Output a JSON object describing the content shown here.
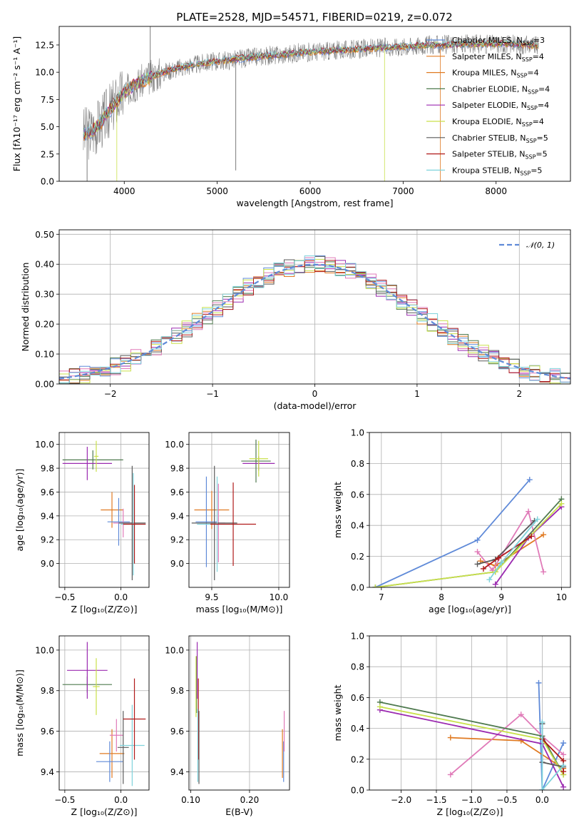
{
  "figure": {
    "title": "PLATE=2528, MJD=54571, FIBERID=0219, z=0.072"
  },
  "colors": {
    "blue": "#5f8ad8",
    "orange": "#e07a22",
    "green": "#4f7a4f",
    "purple": "#9b2ab0",
    "pink": "#e07ab8",
    "lime": "#c9e04a",
    "gray": "#5a5a5a",
    "red": "#b01a1a",
    "cyan": "#7fd3dc",
    "spectrum_gray": "#808080"
  },
  "chart_data": [
    {
      "id": "spectrum",
      "type": "line",
      "xlabel": "wavelength [Angstrom, rest frame]",
      "ylabel": "Flux [fλ10⁻¹⁷ erg cm⁻² s⁻¹ A⁻¹]",
      "xlim": [
        3300,
        8800
      ],
      "ylim": [
        0,
        14.2
      ],
      "xticks": [
        4000,
        5000,
        6000,
        7000,
        8000
      ],
      "yticks": [
        0.0,
        2.5,
        5.0,
        7.5,
        10.0,
        12.5
      ],
      "legend_position": "upper-right",
      "series": [
        {
          "name": "Chabrier MILES, N_SSP=3",
          "label_main": "Chabrier MILES, N",
          "label_sub": "SSP",
          "label_tail": "=3",
          "color": "blue"
        },
        {
          "name": "Salpeter MILES, N_SSP=4",
          "label_main": "Salpeter MILES, N",
          "label_sub": "SSP",
          "label_tail": "=4",
          "color": "orange"
        },
        {
          "name": "Kroupa MILES, N_SSP=4",
          "label_main": "Kroupa MILES, N",
          "label_sub": "SSP",
          "label_tail": "=4",
          "color": "orange"
        },
        {
          "name": "Chabrier ELODIE, N_SSP=4",
          "label_main": "Chabrier ELODIE, N",
          "label_sub": "SSP",
          "label_tail": "=4",
          "color": "green"
        },
        {
          "name": "Salpeter ELODIE, N_SSP=4",
          "label_main": "Salpeter ELODIE, N",
          "label_sub": "SSP",
          "label_tail": "=4",
          "color": "purple"
        },
        {
          "name": "Kroupa ELODIE, N_SSP=4",
          "label_main": "Kroupa ELODIE, N",
          "label_sub": "SSP",
          "label_tail": "=4",
          "color": "lime"
        },
        {
          "name": "Chabrier STELIB, N_SSP=5",
          "label_main": "Chabrier STELIB, N",
          "label_sub": "SSP",
          "label_tail": "=5",
          "color": "gray"
        },
        {
          "name": "Salpeter STELIB, N_SSP=5",
          "label_main": "Salpeter STELIB, N",
          "label_sub": "SSP",
          "label_tail": "=5",
          "color": "red"
        },
        {
          "name": "Kroupa STELIB, N_SSP=5",
          "label_main": "Kroupa STELIB, N",
          "label_sub": "SSP",
          "label_tail": "=5",
          "color": "cyan"
        }
      ],
      "model_curve": {
        "wavelength": [
          3550,
          3650,
          3750,
          3850,
          3950,
          4050,
          4150,
          4250,
          4350,
          4500,
          4700,
          4900,
          5100,
          5300,
          5500,
          5700,
          5900,
          6100,
          6300,
          6500,
          6700,
          6900,
          7100,
          7300,
          7500,
          7700,
          7900,
          8100,
          8300,
          8500
        ],
        "flux": [
          4.3,
          4.6,
          5.4,
          6.6,
          7.7,
          8.5,
          9.0,
          9.4,
          9.8,
          10.2,
          10.6,
          10.9,
          11.1,
          11.3,
          11.5,
          11.6,
          11.8,
          11.9,
          12.0,
          12.1,
          12.2,
          12.3,
          12.4,
          12.5,
          12.5,
          12.6,
          12.6,
          12.6,
          12.5,
          12.4
        ]
      }
    },
    {
      "id": "residuals",
      "type": "line",
      "xlabel": "(data-model)/error",
      "ylabel": "Normed distribution",
      "xlim": [
        -2.5,
        2.5
      ],
      "ylim": [
        0,
        0.515
      ],
      "xticks": [
        -2,
        -1,
        0,
        1,
        2
      ],
      "yticks": [
        0.0,
        0.1,
        0.2,
        0.3,
        0.4,
        0.5
      ],
      "grid": true,
      "legend_position": "upper-right",
      "reference": {
        "name": "N(0,1)",
        "label": "𝒩(0, 1)",
        "type": "gaussian",
        "mean": 0,
        "sigma": 1,
        "color": "blue"
      },
      "bin_width": 0.1,
      "histograms": [
        {
          "color": "blue",
          "seed": 1
        },
        {
          "color": "orange",
          "seed": 2
        },
        {
          "color": "green",
          "seed": 3
        },
        {
          "color": "purple",
          "seed": 4
        },
        {
          "color": "pink",
          "seed": 5
        },
        {
          "color": "lime",
          "seed": 6
        },
        {
          "color": "gray",
          "seed": 7
        },
        {
          "color": "red",
          "seed": 8
        },
        {
          "color": "cyan",
          "seed": 9
        }
      ]
    },
    {
      "id": "age-vs-Z",
      "type": "scatter",
      "xlabel": "Z [log₁₀(Z/Z⊙)]",
      "ylabel": "age  [log₁₀(age/yr)]",
      "xlim": [
        -0.55,
        0.25
      ],
      "ylim": [
        8.8,
        10.1
      ],
      "xticks": [
        -0.5,
        0.0
      ],
      "yticks": [
        9.0,
        9.2,
        9.4,
        9.6,
        9.8,
        10.0
      ],
      "grid": true,
      "points": [
        {
          "x": -0.25,
          "y": 9.87,
          "xerr": 0.27,
          "yerr": 0.08,
          "color": "green"
        },
        {
          "x": -0.3,
          "y": 9.84,
          "xerr": 0.22,
          "yerr": 0.14,
          "color": "purple"
        },
        {
          "x": -0.22,
          "y": 9.9,
          "xerr": 0.02,
          "yerr": 0.13,
          "color": "lime"
        },
        {
          "x": -0.08,
          "y": 9.45,
          "xerr": 0.1,
          "yerr": 0.15,
          "color": "orange"
        },
        {
          "x": -0.02,
          "y": 9.35,
          "xerr": 0.1,
          "yerr": 0.2,
          "color": "blue"
        },
        {
          "x": 0.02,
          "y": 9.34,
          "xerr": 0.09,
          "yerr": 0.12,
          "color": "pink"
        },
        {
          "x": 0.1,
          "y": 9.34,
          "xerr": 0.12,
          "yerr": 0.48,
          "color": "gray"
        },
        {
          "x": 0.11,
          "y": 9.33,
          "xerr": 0.11,
          "yerr": 0.43,
          "color": "cyan"
        },
        {
          "x": 0.12,
          "y": 9.33,
          "xerr": 0.1,
          "yerr": 0.33,
          "color": "red"
        }
      ]
    },
    {
      "id": "age-vs-mass",
      "type": "scatter",
      "xlabel": "mass [log₁₀(M/M⊙)]",
      "ylabel": "",
      "xlim": [
        9.33,
        10.08
      ],
      "ylim": [
        8.8,
        10.1
      ],
      "xticks": [
        9.5,
        10.0
      ],
      "yticks": [
        9.0,
        9.2,
        9.4,
        9.6,
        9.8,
        10.0
      ],
      "grid": true,
      "points": [
        {
          "x": 9.83,
          "y": 9.86,
          "xerr": 0.11,
          "yerr": 0.18,
          "color": "green"
        },
        {
          "x": 9.85,
          "y": 9.84,
          "xerr": 0.12,
          "yerr": 0.06,
          "color": "purple"
        },
        {
          "x": 9.85,
          "y": 9.88,
          "xerr": 0.07,
          "yerr": 0.15,
          "color": "lime"
        },
        {
          "x": 9.5,
          "y": 9.45,
          "xerr": 0.13,
          "yerr": 0.16,
          "color": "orange"
        },
        {
          "x": 9.46,
          "y": 9.35,
          "xerr": 0.08,
          "yerr": 0.38,
          "color": "blue"
        },
        {
          "x": 9.55,
          "y": 9.34,
          "xerr": 0.05,
          "yerr": 0.33,
          "color": "pink"
        },
        {
          "x": 9.52,
          "y": 9.34,
          "xerr": 0.17,
          "yerr": 0.48,
          "color": "gray"
        },
        {
          "x": 9.54,
          "y": 9.33,
          "xerr": 0.15,
          "yerr": 0.4,
          "color": "cyan"
        },
        {
          "x": 9.66,
          "y": 9.33,
          "xerr": 0.17,
          "yerr": 0.35,
          "color": "red"
        }
      ]
    },
    {
      "id": "weight-vs-age",
      "type": "line",
      "xlabel": "age  [log₁₀(age/yr)]",
      "ylabel": "mass weight",
      "xlim": [
        6.8,
        10.15
      ],
      "ylim": [
        0,
        1.0
      ],
      "xticks": [
        7,
        8,
        9,
        10
      ],
      "yticks": [
        0.0,
        0.2,
        0.4,
        0.6,
        0.8,
        1.0
      ],
      "grid": true,
      "series": [
        {
          "color": "blue",
          "x": [
            6.9,
            8.6,
            9.47
          ],
          "y": [
            0.0,
            0.305,
            0.695
          ]
        },
        {
          "color": "orange",
          "x": [
            8.65,
            8.9,
            9.7
          ],
          "y": [
            0.17,
            0.14,
            0.34
          ]
        },
        {
          "color": "pink",
          "x": [
            8.6,
            8.85,
            9.45,
            9.7
          ],
          "y": [
            0.23,
            0.11,
            0.49,
            0.1
          ]
        },
        {
          "color": "green",
          "x": [
            6.9,
            8.9,
            10.0
          ],
          "y": [
            0.0,
            0.1,
            0.57
          ]
        },
        {
          "color": "purple",
          "x": [
            8.9,
            9.45,
            10.0
          ],
          "y": [
            0.02,
            0.32,
            0.52
          ]
        },
        {
          "color": "lime",
          "x": [
            6.9,
            8.9,
            10.0
          ],
          "y": [
            0.0,
            0.1,
            0.54
          ]
        },
        {
          "color": "gray",
          "x": [
            8.6,
            8.9,
            9.55
          ],
          "y": [
            0.15,
            0.18,
            0.43
          ]
        },
        {
          "color": "red",
          "x": [
            8.7,
            8.95,
            9.5
          ],
          "y": [
            0.12,
            0.19,
            0.33
          ]
        },
        {
          "color": "cyan",
          "x": [
            8.8,
            9.0,
            9.6
          ],
          "y": [
            0.05,
            0.16,
            0.44
          ]
        }
      ]
    },
    {
      "id": "mass-vs-Z",
      "type": "scatter",
      "xlabel": "Z [log₁₀(Z/Z⊙)]",
      "ylabel": "mass [log₁₀(M/M⊙)]",
      "xlim": [
        -0.55,
        0.25
      ],
      "ylim": [
        9.31,
        10.07
      ],
      "xticks": [
        -0.5,
        0.0
      ],
      "yticks": [
        9.4,
        9.6,
        9.8,
        10.0
      ],
      "grid": true,
      "points": [
        {
          "x": -0.3,
          "y": 9.83,
          "xerr": 0.22,
          "yerr": 0.04,
          "color": "green"
        },
        {
          "x": -0.3,
          "y": 9.9,
          "xerr": 0.18,
          "yerr": 0.14,
          "color": "purple"
        },
        {
          "x": -0.22,
          "y": 9.82,
          "xerr": 0.03,
          "yerr": 0.14,
          "color": "lime"
        },
        {
          "x": -0.08,
          "y": 9.49,
          "xerr": 0.11,
          "yerr": 0.12,
          "color": "orange"
        },
        {
          "x": -0.1,
          "y": 9.45,
          "xerr": 0.12,
          "yerr": 0.1,
          "color": "blue"
        },
        {
          "x": -0.04,
          "y": 9.58,
          "xerr": 0.06,
          "yerr": 0.08,
          "color": "pink"
        },
        {
          "x": 0.02,
          "y": 9.52,
          "xerr": 0.05,
          "yerr": 0.18,
          "color": "gray"
        },
        {
          "x": 0.1,
          "y": 9.53,
          "xerr": 0.11,
          "yerr": 0.2,
          "color": "cyan"
        },
        {
          "x": 0.12,
          "y": 9.66,
          "xerr": 0.1,
          "yerr": 0.2,
          "color": "red"
        }
      ]
    },
    {
      "id": "mass-vs-EBV",
      "type": "scatter",
      "xlabel": "E(B-V)",
      "ylabel": "",
      "xlim": [
        0.097,
        0.268
      ],
      "ylim": [
        9.31,
        10.07
      ],
      "xticks": [
        0.1,
        0.2
      ],
      "yticks": [
        9.4,
        9.6,
        9.8,
        10.0
      ],
      "grid": true,
      "points": [
        {
          "x": 0.11,
          "y": 9.83,
          "yerr": 0.14,
          "color": "green"
        },
        {
          "x": 0.111,
          "y": 9.9,
          "yerr": 0.14,
          "color": "purple"
        },
        {
          "x": 0.109,
          "y": 9.82,
          "yerr": 0.15,
          "color": "lime"
        },
        {
          "x": 0.114,
          "y": 9.52,
          "yerr": 0.18,
          "color": "gray"
        },
        {
          "x": 0.113,
          "y": 9.66,
          "yerr": 0.2,
          "color": "red"
        },
        {
          "x": 0.112,
          "y": 9.53,
          "yerr": 0.18,
          "color": "cyan"
        },
        {
          "x": 0.256,
          "y": 9.49,
          "yerr": 0.12,
          "color": "orange"
        },
        {
          "x": 0.258,
          "y": 9.45,
          "yerr": 0.1,
          "color": "blue"
        },
        {
          "x": 0.259,
          "y": 9.6,
          "yerr": 0.1,
          "color": "pink"
        }
      ]
    },
    {
      "id": "weight-vs-Z",
      "type": "line",
      "xlabel": "Z [log₁₀(Z/Z⊙)]",
      "ylabel": "mass weight",
      "xlim": [
        -2.45,
        0.4
      ],
      "ylim": [
        0,
        1.0
      ],
      "xticks": [
        -2.0,
        -1.5,
        -1.0,
        -0.5,
        0.0
      ],
      "yticks": [
        0.0,
        0.2,
        0.4,
        0.6,
        0.8,
        1.0
      ],
      "grid": true,
      "series": [
        {
          "color": "blue",
          "x": [
            -0.05,
            0.0,
            0.3
          ],
          "y": [
            0.695,
            0.0,
            0.305
          ]
        },
        {
          "color": "orange",
          "x": [
            -1.3,
            -0.3,
            0.3
          ],
          "y": [
            0.34,
            0.32,
            0.14
          ]
        },
        {
          "color": "pink",
          "x": [
            -1.3,
            -0.3,
            0.0,
            0.3
          ],
          "y": [
            0.1,
            0.49,
            0.35,
            0.23
          ]
        },
        {
          "color": "green",
          "x": [
            -2.3,
            0.0,
            0.3
          ],
          "y": [
            0.57,
            0.35,
            0.1
          ]
        },
        {
          "color": "purple",
          "x": [
            -2.3,
            0.0,
            0.3
          ],
          "y": [
            0.52,
            0.3,
            0.02
          ]
        },
        {
          "color": "lime",
          "x": [
            -2.3,
            0.0,
            0.3
          ],
          "y": [
            0.54,
            0.33,
            0.1
          ]
        },
        {
          "color": "gray",
          "x": [
            0.0,
            0.0,
            0.3
          ],
          "y": [
            0.43,
            0.18,
            0.15
          ]
        },
        {
          "color": "red",
          "x": [
            0.0,
            0.3,
            0.3
          ],
          "y": [
            0.33,
            0.19,
            0.12
          ]
        },
        {
          "color": "cyan",
          "x": [
            0.0,
            0.0,
            0.3
          ],
          "y": [
            0.44,
            0.0,
            0.16
          ]
        }
      ]
    }
  ]
}
